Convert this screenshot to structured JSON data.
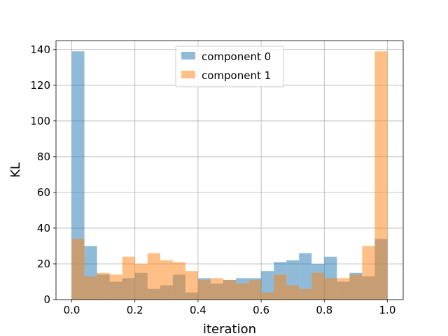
{
  "chart_data": {
    "type": "bar",
    "title": "",
    "xlabel": "iteration",
    "ylabel": "KL",
    "xlim": [
      -0.05,
      1.05
    ],
    "ylim": [
      0,
      145
    ],
    "xticks": [
      "0.0",
      "0.2",
      "0.4",
      "0.6",
      "0.8",
      "1.0"
    ],
    "yticks": [
      "0",
      "20",
      "40",
      "60",
      "80",
      "100",
      "120",
      "140"
    ],
    "grid": true,
    "legend_position": "top-center",
    "bin_edges": [
      0.0,
      0.04,
      0.08,
      0.12,
      0.16,
      0.2,
      0.24,
      0.28,
      0.32,
      0.36,
      0.4,
      0.44,
      0.48,
      0.52,
      0.56,
      0.6,
      0.64,
      0.68,
      0.72,
      0.76,
      0.8,
      0.84,
      0.88,
      0.92,
      0.96,
      1.0
    ],
    "series": [
      {
        "name": "component 0",
        "color": "#1f77b4",
        "values": [
          139,
          30,
          14,
          10,
          12,
          15,
          6,
          8,
          14,
          4,
          12,
          9,
          11,
          12,
          12,
          16,
          21,
          22,
          26,
          20,
          24,
          10,
          15,
          13,
          34
        ]
      },
      {
        "name": "component 1",
        "color": "#ff7f0e",
        "values": [
          34,
          13,
          15,
          14,
          24,
          20,
          26,
          22,
          21,
          16,
          11,
          12,
          11,
          9,
          11,
          4,
          14,
          8,
          6,
          15,
          12,
          12,
          14,
          30,
          139
        ]
      }
    ]
  }
}
